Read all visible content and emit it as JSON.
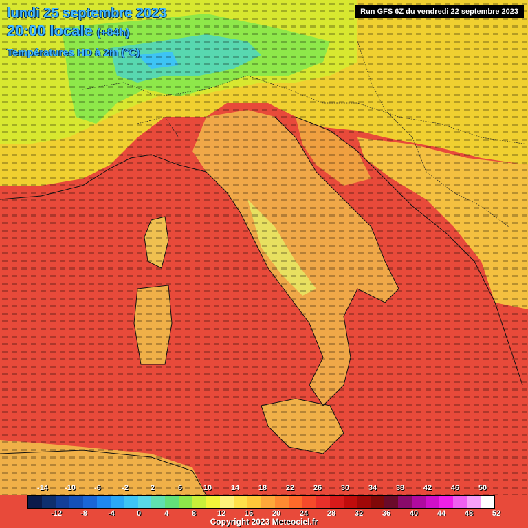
{
  "header": {
    "line1": "lundi 25 septembre 2023",
    "line2_main": "20:00 locale",
    "line2_sub": "(+84h)",
    "line3": "Températures HD à 2m (°C)",
    "run_label": "Run GFS 6Z du vendredi 22 septembre 2023"
  },
  "legend": {
    "upper_ticks": [
      "-14",
      "-10",
      "-6",
      "-2",
      "2",
      "6",
      "10",
      "14",
      "18",
      "22",
      "26",
      "30",
      "34",
      "38",
      "42",
      "46",
      "50"
    ],
    "lower_ticks": [
      "-12",
      "-8",
      "-4",
      "0",
      "4",
      "8",
      "12",
      "16",
      "20",
      "24",
      "28",
      "32",
      "36",
      "40",
      "44",
      "48",
      "52"
    ],
    "colors": [
      "#0b1a4a",
      "#0e2f6e",
      "#123f99",
      "#1450b8",
      "#1a66d6",
      "#1e88f0",
      "#2aa8f7",
      "#3dc4f5",
      "#58d8e8",
      "#60e0b0",
      "#63e07a",
      "#8ee84a",
      "#c8f03a",
      "#f2f43a",
      "#fff27a",
      "#ffe04a",
      "#ffc83a",
      "#ffa83a",
      "#ff8a32",
      "#ff6a2a",
      "#f64a2a",
      "#e8302a",
      "#d81a1a",
      "#c00c0c",
      "#a00808",
      "#800808",
      "#6a0a2a",
      "#8a0a6a",
      "#b00aa0",
      "#d010c8",
      "#f020e8",
      "#f060f0",
      "#f8a0f8",
      "#ffffff"
    ]
  },
  "copyright": "Copyright 2023 Meteociel.fr"
}
